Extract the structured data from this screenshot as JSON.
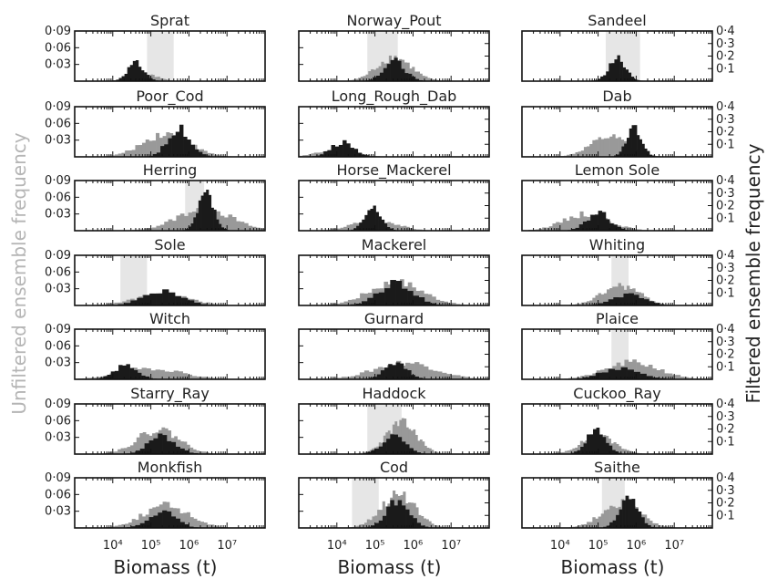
{
  "colors": {
    "unfiltered": "#999999",
    "filtered": "#1a1a1a",
    "band": "#e6e6e6",
    "left_axis_label": "#b5b5b5"
  },
  "chart_data": {
    "type": "bar",
    "layout": "7 rows x 3 columns histograms",
    "x_scale": "log10",
    "xlim": [
      1000,
      100000000
    ],
    "x_ticks": [
      10000,
      100000,
      1000000,
      10000000
    ],
    "x_tick_labels": [
      "10⁴",
      "10⁵",
      "10⁶",
      "10⁷"
    ],
    "xlabel": "Biomass (t)",
    "ylabel_left": "Unfiltered ensemble frequency",
    "ylabel_right": "Filtered ensemble frequency",
    "left_ylim": [
      0,
      0.09
    ],
    "left_ticks": [
      "0·09",
      "0·06",
      "0·03"
    ],
    "right_ylim": [
      0,
      0.4
    ],
    "right_ticks": [
      "0·4",
      "0·3",
      "0·2",
      "0·1"
    ],
    "panels": [
      {
        "title": "Sprat",
        "unfiltered": {
          "center": 4.9,
          "sd": 0.32,
          "peak": 0.011
        },
        "filtered": {
          "center": 4.6,
          "sd": 0.22,
          "peak": 0.032
        },
        "band": [
          4.9,
          5.6
        ]
      },
      {
        "title": "Norway_Pout",
        "unfiltered": {
          "center": 5.5,
          "sd": 0.45,
          "peak": 0.043
        },
        "filtered": {
          "center": 5.5,
          "sd": 0.28,
          "peak": 0.036
        },
        "band": [
          4.8,
          5.6
        ]
      },
      {
        "title": "Sandeel",
        "unfiltered": {
          "center": 5.5,
          "sd": 0.3,
          "peak": 0.014
        },
        "filtered": {
          "center": 5.5,
          "sd": 0.22,
          "peak": 0.04
        },
        "band": [
          5.2,
          6.1
        ]
      },
      {
        "title": "Poor_Cod",
        "unfiltered": {
          "center": 5.4,
          "sd": 0.6,
          "peak": 0.042
        },
        "filtered": {
          "center": 5.75,
          "sd": 0.3,
          "peak": 0.05
        }
      },
      {
        "title": "Long_Rough_Dab",
        "unfiltered": {
          "center": 4.0,
          "sd": 0.5,
          "peak": 0.012
        },
        "filtered": {
          "center": 4.15,
          "sd": 0.3,
          "peak": 0.026
        }
      },
      {
        "title": "Dab",
        "unfiltered": {
          "center": 5.3,
          "sd": 0.5,
          "peak": 0.035
        },
        "filtered": {
          "center": 5.95,
          "sd": 0.2,
          "peak": 0.05
        }
      },
      {
        "title": "Herring",
        "unfiltered": {
          "center": 6.4,
          "sd": 0.7,
          "peak": 0.04
        },
        "filtered": {
          "center": 6.45,
          "sd": 0.2,
          "peak": 0.065
        },
        "band": [
          5.9,
          6.4
        ]
      },
      {
        "title": "Horse_Mackerel",
        "unfiltered": {
          "center": 5.0,
          "sd": 0.55,
          "peak": 0.02
        },
        "filtered": {
          "center": 4.95,
          "sd": 0.22,
          "peak": 0.04
        }
      },
      {
        "title": "Lemon Sole",
        "unfiltered": {
          "center": 4.7,
          "sd": 0.6,
          "peak": 0.03
        },
        "filtered": {
          "center": 5.0,
          "sd": 0.3,
          "peak": 0.032
        }
      },
      {
        "title": "Sole",
        "unfiltered": {
          "center": 5.3,
          "sd": 0.7,
          "peak": 0.02
        },
        "filtered": {
          "center": 5.3,
          "sd": 0.5,
          "peak": 0.026
        },
        "band": [
          4.2,
          4.9
        ]
      },
      {
        "title": "Mackerel",
        "unfiltered": {
          "center": 5.55,
          "sd": 0.7,
          "peak": 0.042
        },
        "filtered": {
          "center": 5.55,
          "sd": 0.45,
          "peak": 0.04
        }
      },
      {
        "title": "Whiting",
        "unfiltered": {
          "center": 5.6,
          "sd": 0.5,
          "peak": 0.035
        },
        "filtered": {
          "center": 5.8,
          "sd": 0.4,
          "peak": 0.02
        },
        "band": [
          5.35,
          5.8
        ]
      },
      {
        "title": "Witch",
        "unfiltered": {
          "center": 5.0,
          "sd": 0.8,
          "peak": 0.02
        },
        "filtered": {
          "center": 4.35,
          "sd": 0.3,
          "peak": 0.025
        }
      },
      {
        "title": "Gurnard",
        "unfiltered": {
          "center": 5.8,
          "sd": 0.8,
          "peak": 0.03
        },
        "filtered": {
          "center": 5.55,
          "sd": 0.3,
          "peak": 0.028
        }
      },
      {
        "title": "Plaice",
        "unfiltered": {
          "center": 5.9,
          "sd": 0.7,
          "peak": 0.03
        },
        "filtered": {
          "center": 5.6,
          "sd": 0.5,
          "peak": 0.02
        },
        "band": [
          5.35,
          5.8
        ]
      },
      {
        "title": "Starry_Ray",
        "unfiltered": {
          "center": 5.2,
          "sd": 0.55,
          "peak": 0.044
        },
        "filtered": {
          "center": 5.3,
          "sd": 0.35,
          "peak": 0.032
        }
      },
      {
        "title": "Haddock",
        "unfiltered": {
          "center": 5.7,
          "sd": 0.4,
          "peak": 0.055
        },
        "filtered": {
          "center": 5.5,
          "sd": 0.3,
          "peak": 0.033
        },
        "band": [
          4.8,
          5.7
        ]
      },
      {
        "title": "Cuckoo_Ray",
        "unfiltered": {
          "center": 5.0,
          "sd": 0.45,
          "peak": 0.032
        },
        "filtered": {
          "center": 4.95,
          "sd": 0.25,
          "peak": 0.045
        }
      },
      {
        "title": "Monkfish",
        "unfiltered": {
          "center": 5.4,
          "sd": 0.6,
          "peak": 0.04
        },
        "filtered": {
          "center": 5.3,
          "sd": 0.35,
          "peak": 0.03
        }
      },
      {
        "title": "Cod",
        "unfiltered": {
          "center": 5.6,
          "sd": 0.45,
          "peak": 0.06
        },
        "filtered": {
          "center": 5.6,
          "sd": 0.3,
          "peak": 0.048
        },
        "band": [
          4.4,
          5.1
        ]
      },
      {
        "title": "Saithe",
        "unfiltered": {
          "center": 5.6,
          "sd": 0.5,
          "peak": 0.045
        },
        "filtered": {
          "center": 5.8,
          "sd": 0.25,
          "peak": 0.05
        },
        "band": [
          5.1,
          5.7
        ]
      }
    ]
  }
}
